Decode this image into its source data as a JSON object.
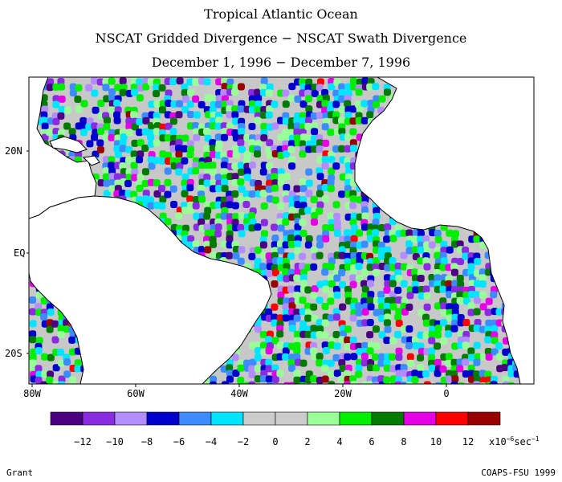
{
  "title": {
    "line1": "Tropical Atlantic Ocean",
    "line2": "NSCAT Gridded Divergence − NSCAT Swath Divergence",
    "line3": "December 1, 1996 − December 7, 1996"
  },
  "map": {
    "region": "Tropical Atlantic Ocean",
    "lat_labels": [
      "20N",
      "EQ",
      "20S"
    ],
    "lon_labels": [
      "80W",
      "60W",
      "40W",
      "20W",
      "0"
    ],
    "land_color": "#ffffff",
    "coastline_color": "#000000",
    "missing_color": "#c8c8c8"
  },
  "colorbar": {
    "colors": [
      "#4b0082",
      "#8a2be2",
      "#b38cff",
      "#0000cd",
      "#3c8cff",
      "#00e5ff",
      "#cccccc",
      "#cccccc",
      "#99ff99",
      "#00ee00",
      "#007a00",
      "#e600e6",
      "#ff0000",
      "#990000"
    ],
    "tick_labels": [
      "−12",
      "−10",
      "−8",
      "−6",
      "−4",
      "−2",
      "0",
      "2",
      "4",
      "6",
      "8",
      "10",
      "12"
    ],
    "unit_prefix": "x10",
    "unit_exp": "−6",
    "unit_suffix": "sec",
    "unit_suffix_exp": "−1"
  },
  "credits": {
    "left": "Grant",
    "right": "COAPS-FSU 1999"
  }
}
